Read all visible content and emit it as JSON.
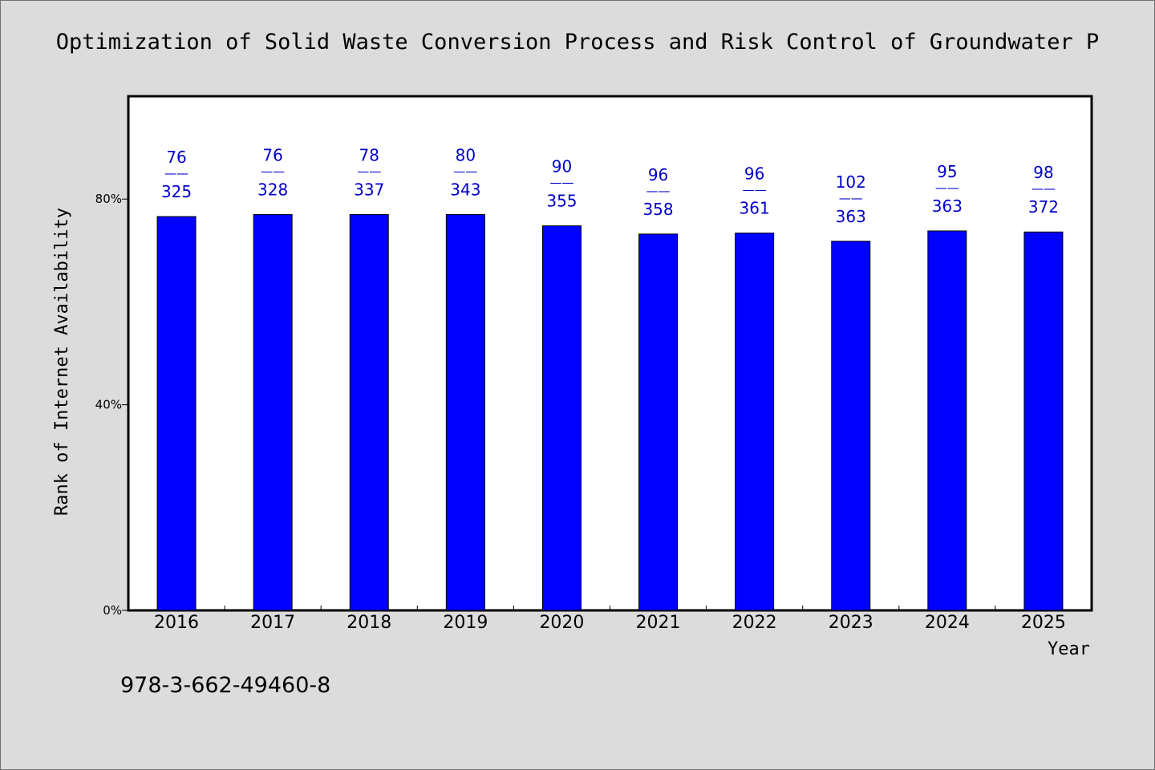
{
  "chart_data": {
    "type": "bar",
    "title": "Optimization of Solid Waste Conversion Process and Risk Control of Groundwater P",
    "xlabel": "Year",
    "ylabel": "Rank of Internet Availability",
    "ylim": [
      0,
      100
    ],
    "yticks": [
      {
        "value": 0,
        "label": "0%"
      },
      {
        "value": 40,
        "label": "40%"
      },
      {
        "value": 80,
        "label": "80%"
      }
    ],
    "categories": [
      "2016",
      "2017",
      "2018",
      "2019",
      "2020",
      "2021",
      "2022",
      "2023",
      "2024",
      "2025"
    ],
    "values": [
      76.6,
      77.0,
      77.0,
      77.0,
      74.8,
      73.2,
      73.4,
      71.8,
      73.8,
      73.6
    ],
    "data_labels": [
      {
        "top": "76",
        "sep": "——",
        "bottom": "325"
      },
      {
        "top": "76",
        "sep": "——",
        "bottom": "328"
      },
      {
        "top": "78",
        "sep": "——",
        "bottom": "337"
      },
      {
        "top": "80",
        "sep": "——",
        "bottom": "343"
      },
      {
        "top": "90",
        "sep": "——",
        "bottom": "355"
      },
      {
        "top": "96",
        "sep": "——",
        "bottom": "358"
      },
      {
        "top": "96",
        "sep": "——",
        "bottom": "361"
      },
      {
        "top": "102",
        "sep": "——",
        "bottom": "363"
      },
      {
        "top": "95",
        "sep": "——",
        "bottom": "363"
      },
      {
        "top": "98",
        "sep": "——",
        "bottom": "372"
      }
    ],
    "bar_color": "#0000ff",
    "label_color": "#0000cc",
    "plot_background": "#ffffff",
    "grid": false,
    "legend": "none"
  },
  "footer": {
    "isbn": "978-3-662-49460-8"
  }
}
